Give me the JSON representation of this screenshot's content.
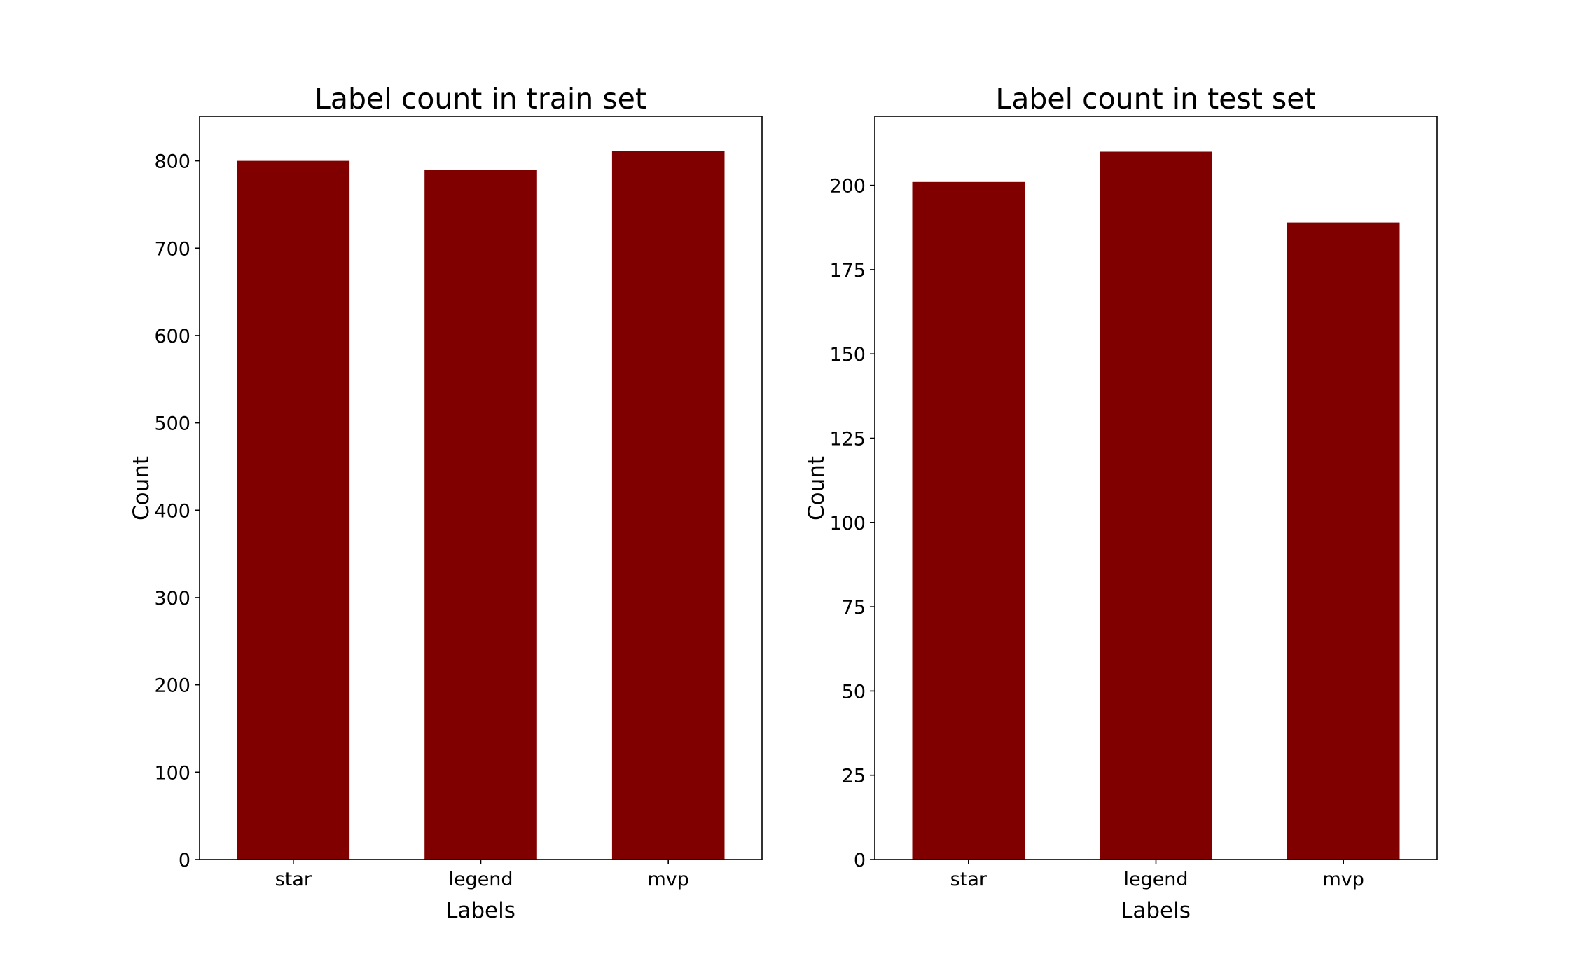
{
  "figure": {
    "background": "#ffffff",
    "bar_color": "#800000"
  },
  "chart_data": [
    {
      "type": "bar",
      "title": "Label count in train set",
      "xlabel": "Labels",
      "ylabel": "Count",
      "categories": [
        "star",
        "legend",
        "mvp"
      ],
      "values": [
        800,
        790,
        811
      ],
      "ylim": [
        0,
        851
      ],
      "yticks": [
        0,
        100,
        200,
        300,
        400,
        500,
        600,
        700,
        800
      ],
      "grid": false
    },
    {
      "type": "bar",
      "title": "Label count in test set",
      "xlabel": "Labels",
      "ylabel": "Count",
      "categories": [
        "star",
        "legend",
        "mvp"
      ],
      "values": [
        201,
        210,
        189
      ],
      "ylim": [
        0,
        220.5
      ],
      "yticks": [
        0,
        25,
        50,
        75,
        100,
        125,
        150,
        175,
        200
      ],
      "grid": false
    }
  ]
}
